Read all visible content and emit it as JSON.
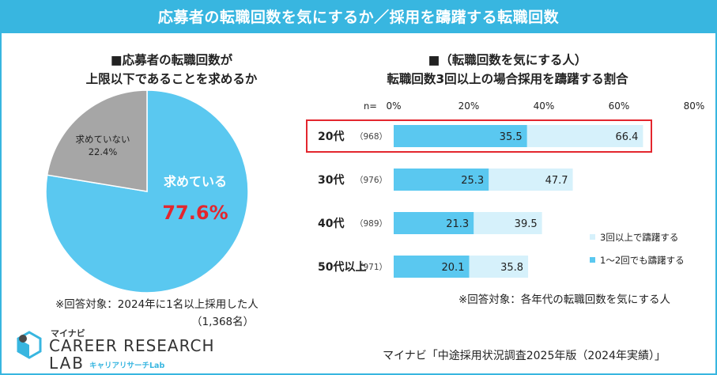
{
  "header": {
    "title": "応募者の転職回数を気にするか／採用を躊躇する転職回数"
  },
  "chart_data": [
    {
      "type": "pie",
      "title_lines": [
        "■応募者の転職回数が",
        "上限以下であることを求めるか"
      ],
      "slices": [
        {
          "label": "求めている",
          "value": 77.6,
          "value_text": "77.6%",
          "color": "#5ac8f0"
        },
        {
          "label": "求めていない",
          "value": 22.4,
          "value_text": "22.4%",
          "color": "#a6a6a6"
        }
      ],
      "note_lines": [
        "※回答対象：2024年に1名以上採用した人",
        "（1,368名）"
      ]
    },
    {
      "type": "bar",
      "orientation": "horizontal",
      "title_lines": [
        "■（転職回数を気にする人）",
        "転職回数3回以上の場合採用を躊躇する割合"
      ],
      "n_label": "n=",
      "categories": [
        "20代",
        "30代",
        "40代",
        "50代以上"
      ],
      "n_values": [
        "（968）",
        "（976）",
        "（989）",
        "（971）"
      ],
      "xlim": [
        0,
        80
      ],
      "xticks": [
        "0%",
        "20%",
        "40%",
        "60%",
        "80%"
      ],
      "series": [
        {
          "name": "3回以上で躊躇する",
          "values": [
            66.4,
            47.7,
            39.5,
            35.8
          ],
          "color": "#d6f1fb"
        },
        {
          "name": "1～2回でも躊躇する",
          "values": [
            35.5,
            25.3,
            21.3,
            20.1
          ],
          "color": "#5ac8f0"
        }
      ],
      "highlight_category": "20代",
      "highlight_color": "#e3262e",
      "note": "※回答対象：各年代の転職回数を気にする人"
    }
  ],
  "footer": {
    "source": "マイナビ「中途採用状況調査2025年版（2024年実績）」",
    "logo_small": "マイナビ",
    "logo_line1": "CAREER RESEARCH",
    "logo_line2": "LAB",
    "logo_kana": "キャリアリサーチLab"
  },
  "colors": {
    "accent": "#38b6e0",
    "pie_main": "#5ac8f0",
    "pie_other": "#a6a6a6",
    "highlight": "#e3262e",
    "big_value": "#e3262e"
  }
}
